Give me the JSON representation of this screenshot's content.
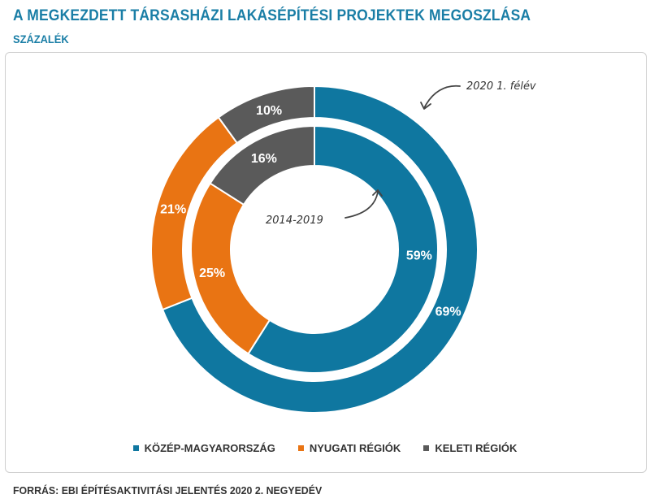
{
  "header": {
    "title": "A MEGKEZDETT TÁRSASHÁZI LAKÁSÉPÍTÉSI PROJEKTEK MEGOSZLÁSA",
    "subtitle": "SZÁZALÉK"
  },
  "chart_data": {
    "type": "pie",
    "variant": "nested-donut",
    "categories": [
      "KÖZÉP-MAGYARORSZÁG",
      "NYUGATI RÉGIÓK",
      "KELETI RÉGIÓK"
    ],
    "colors": [
      "#0f77a0",
      "#e97413",
      "#5a5a5a"
    ],
    "series": [
      {
        "name": "2020 1. félév",
        "ring": "outer",
        "values": [
          69,
          21,
          10
        ],
        "labels": [
          "69%",
          "21%",
          "10%"
        ]
      },
      {
        "name": "2014-2019",
        "ring": "inner",
        "values": [
          59,
          25,
          16
        ],
        "labels": [
          "59%",
          "25%",
          "16%"
        ]
      }
    ],
    "annotations": [
      "2020 1. félév",
      "2014-2019"
    ]
  },
  "legend": [
    {
      "label": "KÖZÉP-MAGYARORSZÁG",
      "color": "#0f77a0"
    },
    {
      "label": "NYUGATI RÉGIÓK",
      "color": "#e97413"
    },
    {
      "label": "KELETI RÉGIÓK",
      "color": "#5a5a5a"
    }
  ],
  "footer": {
    "source": "FORRÁS: EBI ÉPÍTÉSAKTIVITÁSI JELENTÉS 2020 2. NEGYEDÉV"
  }
}
